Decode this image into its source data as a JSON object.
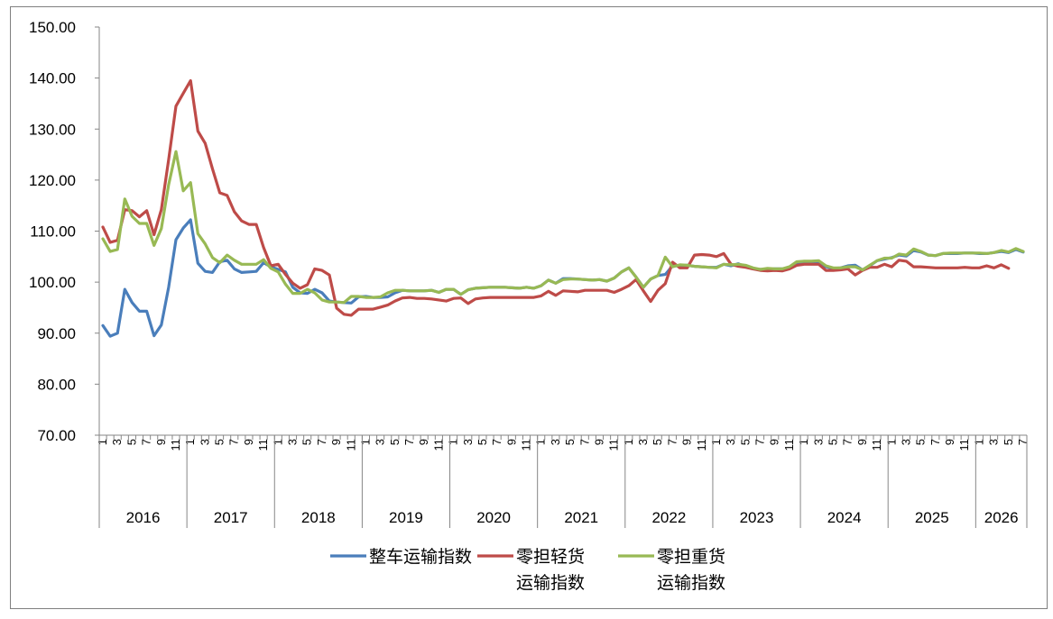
{
  "chart_data": {
    "type": "line",
    "title": "",
    "xlabel": "",
    "ylabel": "",
    "ylim": [
      70,
      150
    ],
    "yticks": [
      "70.00",
      "80.00",
      "90.00",
      "100.00",
      "110.00",
      "120.00",
      "130.00",
      "140.00",
      "150.00"
    ],
    "grid": false,
    "legend_position": "bottom",
    "years": [
      "2016",
      "2017",
      "2018",
      "2019",
      "2020",
      "2021",
      "2022",
      "2023",
      "2024",
      "2025",
      "2026"
    ],
    "month_ticks": [
      "1",
      "3",
      "5",
      "7",
      "9",
      "11"
    ],
    "x_start": "2016-01",
    "series": [
      {
        "name": "整车运输指数",
        "color": "#4a7ebb",
        "values": [
          91.5,
          89.4,
          90.0,
          98.6,
          96.0,
          94.3,
          94.3,
          89.5,
          91.6,
          99.0,
          108.3,
          110.6,
          112.2,
          103.7,
          102.1,
          101.9,
          104.0,
          104.3,
          102.6,
          101.9,
          102.0,
          102.1,
          103.8,
          103.0,
          102.5,
          102.0,
          99.0,
          97.9,
          97.8,
          98.6,
          97.9,
          96.3,
          96.1,
          96.0,
          95.9,
          97.1,
          97.2,
          97.0,
          97.0,
          97.1,
          97.9,
          98.4,
          98.3,
          98.3,
          98.3,
          98.4,
          98.0,
          98.6,
          98.6,
          97.6,
          98.5,
          98.8,
          98.9,
          99.0,
          99.0,
          99.0,
          98.9,
          98.8,
          99.0,
          98.8,
          99.3,
          100.4,
          99.8,
          100.7,
          100.7,
          100.6,
          100.5,
          100.4,
          100.5,
          100.2,
          100.8,
          102.0,
          102.8,
          101.0,
          99.0,
          100.6,
          101.3,
          101.5,
          103.2,
          103.2,
          103.3,
          103.1,
          103.0,
          102.9,
          102.9,
          103.5,
          103.2,
          103.6,
          103.0,
          102.6,
          102.5,
          102.5,
          102.6,
          102.6,
          102.8,
          103.8,
          103.9,
          104.0,
          103.9,
          103.0,
          102.7,
          102.8,
          103.2,
          103.3,
          102.4,
          103.2,
          104.2,
          104.5,
          104.8,
          105.3,
          105.1,
          106.2,
          105.9,
          105.3,
          105.2,
          105.6,
          105.6,
          105.6,
          105.7,
          105.7,
          105.6,
          105.6,
          105.8,
          106.0,
          105.8,
          106.4,
          105.9
        ]
      },
      {
        "name": "零担轻货运输指数",
        "color": "#be4b48",
        "values": [
          110.8,
          107.8,
          108.2,
          114.2,
          114.0,
          112.8,
          114.0,
          109.3,
          114.2,
          124.0,
          134.5,
          137.0,
          139.5,
          129.6,
          127.2,
          122.2,
          117.5,
          117.0,
          113.8,
          112.0,
          111.3,
          111.3,
          106.8,
          103.2,
          103.5,
          101.5,
          99.8,
          98.8,
          99.5,
          102.6,
          102.3,
          101.4,
          94.9,
          93.7,
          93.5,
          94.7,
          94.7,
          94.7,
          95.1,
          95.5,
          96.3,
          96.9,
          97.0,
          96.8,
          96.8,
          96.7,
          96.5,
          96.3,
          96.8,
          96.9,
          95.8,
          96.7,
          96.9,
          97.0,
          97.0,
          97.0,
          97.0,
          97.0,
          97.0,
          97.0,
          97.3,
          98.2,
          97.4,
          98.3,
          98.2,
          98.1,
          98.4,
          98.4,
          98.4,
          98.4,
          98.0,
          98.6,
          99.3,
          100.5,
          98.3,
          96.2,
          98.4,
          99.7,
          103.9,
          102.8,
          102.8,
          105.3,
          105.4,
          105.3,
          105.0,
          105.6,
          103.5,
          103.1,
          102.9,
          102.6,
          102.3,
          102.2,
          102.3,
          102.2,
          102.6,
          103.3,
          103.5,
          103.5,
          103.5,
          102.3,
          102.3,
          102.4,
          102.6,
          101.4,
          102.3,
          102.9,
          102.9,
          103.5,
          103.0,
          104.3,
          104.1,
          103.0,
          103.0,
          102.9,
          102.8,
          102.8,
          102.8,
          102.8,
          102.9,
          102.8,
          102.8,
          103.2,
          102.8,
          103.4,
          102.7
        ]
      },
      {
        "name": "零担重货运输指数",
        "color": "#98b954",
        "values": [
          108.5,
          106.0,
          106.4,
          116.3,
          112.9,
          111.5,
          111.5,
          107.2,
          110.5,
          119.1,
          125.6,
          117.9,
          119.5,
          109.5,
          107.5,
          104.8,
          103.8,
          105.3,
          104.3,
          103.5,
          103.5,
          103.5,
          104.4,
          102.7,
          102.0,
          99.6,
          97.8,
          97.8,
          98.6,
          97.9,
          96.5,
          96.1,
          96.1,
          96.0,
          97.2,
          97.2,
          97.0,
          97.0,
          97.1,
          97.9,
          98.4,
          98.4,
          98.3,
          98.3,
          98.3,
          98.4,
          98.0,
          98.6,
          98.6,
          97.6,
          98.5,
          98.8,
          98.9,
          99.0,
          99.0,
          99.0,
          98.9,
          98.8,
          99.0,
          98.8,
          99.3,
          100.4,
          99.8,
          100.5,
          100.6,
          100.6,
          100.5,
          100.4,
          100.5,
          100.2,
          100.8,
          102.0,
          102.8,
          101.0,
          99.0,
          100.6,
          101.3,
          104.9,
          103.0,
          103.4,
          103.3,
          103.1,
          103.0,
          102.9,
          102.8,
          103.5,
          103.4,
          103.5,
          103.3,
          102.8,
          102.5,
          102.7,
          102.6,
          102.6,
          103.0,
          104.0,
          104.1,
          104.1,
          104.2,
          103.2,
          102.8,
          102.8,
          103.0,
          103.0,
          102.4,
          103.3,
          104.2,
          104.7,
          104.7,
          105.5,
          105.3,
          106.5,
          106.0,
          105.3,
          105.2,
          105.6,
          105.7,
          105.7,
          105.7,
          105.7,
          105.7,
          105.6,
          105.8,
          106.2,
          105.9,
          106.6,
          106.0
        ]
      }
    ]
  }
}
